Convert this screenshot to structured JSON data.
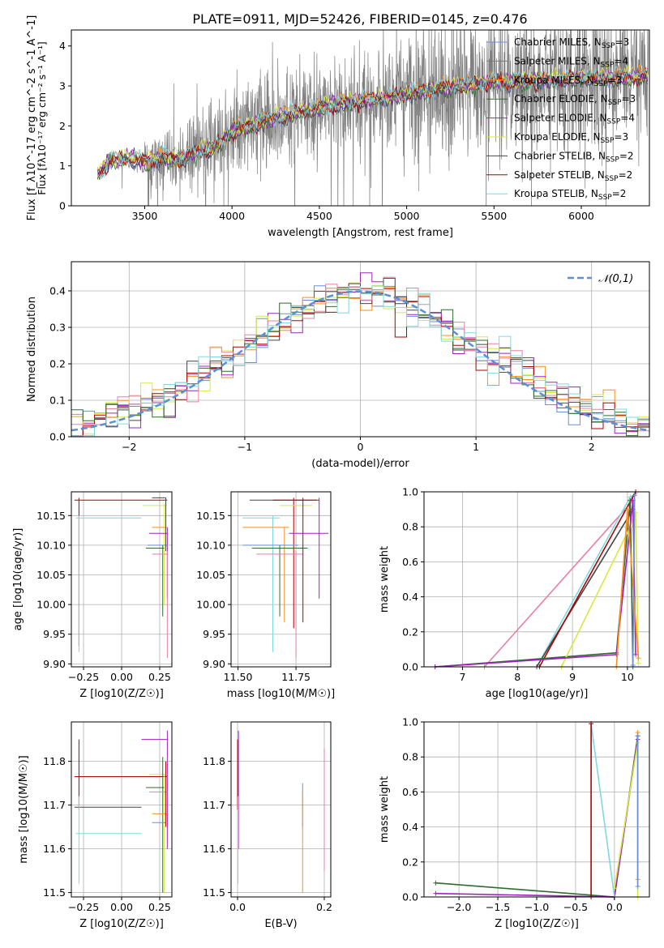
{
  "figure_title": "PLATE=0911, MJD=52426, FIBERID=0145, z=0.476",
  "colors": {
    "Chabrier MILES": "#6a8fd6",
    "Salpeter MILES": "#7a7a7a",
    "Kroupa MILES": "#ff8c1a",
    "Chabrier ELODIE": "#2f6b2f",
    "Salpeter ELODIE": "#a020c0",
    "Kroupa ELODIE": "#d8e840",
    "Chabrier STELIB": "#444444",
    "Salpeter STELIB": "#b00000",
    "Kroupa STELIB": "#7fd8e0",
    "gauss": "#5b8fd6",
    "pink": "#e87fa8"
  },
  "chart_data": [
    {
      "type": "line",
      "title": "",
      "xlabel": "wavelength [Angstrom, rest frame]",
      "ylabel": "Flux [f_λ10^-17 erg cm^-2 s^-1 A^-1]",
      "xlim": [
        3080,
        6390
      ],
      "ylim": [
        0,
        4.4
      ],
      "xticks": [
        3500,
        4000,
        4500,
        5000,
        5500,
        6000
      ],
      "yticks": [
        0,
        1,
        2,
        3,
        4
      ],
      "legend_position": "right",
      "series": [
        {
          "name": "Chabrier MILES, N_SSP=3"
        },
        {
          "name": "Salpeter MILES, N_SSP=4"
        },
        {
          "name": "Kroupa MILES, N_SSP=3"
        },
        {
          "name": "Chabrier ELODIE, N_SSP=3"
        },
        {
          "name": "Salpeter ELODIE, N_SSP=4"
        },
        {
          "name": "Kroupa ELODIE, N_SSP=3"
        },
        {
          "name": "Chabrier STELIB, N_SSP=2"
        },
        {
          "name": "Salpeter STELIB, N_SSP=2"
        },
        {
          "name": "Kroupa STELIB, N_SSP=2"
        }
      ],
      "continuum": {
        "x": [
          3230,
          3300,
          3400,
          3500,
          3600,
          3700,
          3800,
          3900,
          4000,
          4100,
          4200,
          4300,
          4400,
          4500,
          4600,
          4700,
          4800,
          4900,
          5000,
          5100,
          5200,
          5300,
          5400,
          5500,
          5600,
          5700,
          5800,
          5900,
          6000,
          6100,
          6200,
          6300,
          6380
        ],
        "y": [
          0.75,
          1.15,
          1.2,
          1.1,
          1.2,
          1.15,
          1.35,
          1.45,
          1.85,
          2.0,
          2.15,
          2.25,
          2.35,
          2.45,
          2.55,
          2.6,
          2.65,
          2.72,
          2.8,
          2.85,
          2.95,
          3.0,
          3.05,
          3.1,
          3.1,
          3.12,
          3.15,
          3.15,
          3.2,
          3.2,
          3.22,
          3.22,
          3.25
        ]
      }
    },
    {
      "type": "bar",
      "title": "",
      "xlabel": "(data-model)/error",
      "ylabel": "Normed distribution",
      "xlim": [
        -2.5,
        2.5
      ],
      "ylim": [
        0,
        0.48
      ],
      "xticks": [
        -2,
        -1,
        0,
        1,
        2
      ],
      "yticks": [
        0.0,
        0.1,
        0.2,
        0.3,
        0.4
      ],
      "legend": [
        "𝒩(0,1)"
      ],
      "legend_position": "top-right",
      "grid": true
    },
    {
      "type": "scatter",
      "xlabel": "Z [log10(Z/Z☉)]",
      "ylabel": "age  [log10(age/yr)]",
      "xlim": [
        -0.33,
        0.33
      ],
      "ylim": [
        9.895,
        10.19
      ],
      "xticks": [
        -0.25,
        0.0,
        0.25
      ],
      "yticks": [
        9.9,
        9.95,
        10.0,
        10.05,
        10.1,
        10.15
      ],
      "grid": true
    },
    {
      "type": "scatter",
      "xlabel": "mass [log10(M/M☉)]",
      "ylabel": "",
      "xlim": [
        11.47,
        11.9
      ],
      "ylim": [
        9.895,
        10.19
      ],
      "xticks": [
        11.5,
        11.75
      ],
      "yticks": [
        9.9,
        9.95,
        10.0,
        10.05,
        10.1,
        10.15
      ],
      "grid": true
    },
    {
      "type": "line",
      "xlabel": "age  [log10(age/yr)]",
      "ylabel": "mass weight",
      "xlim": [
        6.3,
        10.4
      ],
      "ylim": [
        0,
        1.0
      ],
      "xticks": [
        7,
        8,
        9,
        10
      ],
      "yticks": [
        0.0,
        0.2,
        0.4,
        0.6,
        0.8,
        1.0
      ],
      "grid": true
    },
    {
      "type": "scatter",
      "xlabel": "Z [log10(Z/Z☉)]",
      "ylabel": "mass [log10(M/M☉)]",
      "xlim": [
        -0.33,
        0.33
      ],
      "ylim": [
        11.49,
        11.89
      ],
      "xticks": [
        -0.25,
        0.0,
        0.25
      ],
      "yticks": [
        11.5,
        11.6,
        11.7,
        11.8
      ],
      "grid": true
    },
    {
      "type": "scatter",
      "xlabel": "E(B-V)",
      "ylabel": "",
      "xlim": [
        -0.015,
        0.215
      ],
      "ylim": [
        11.49,
        11.89
      ],
      "xticks": [
        0.0,
        0.2
      ],
      "yticks": [
        11.5,
        11.6,
        11.7,
        11.8
      ],
      "grid": true
    },
    {
      "type": "line",
      "xlabel": "Z [log10(Z/Z☉)]",
      "ylabel": "mass weight",
      "xlim": [
        -2.45,
        0.45
      ],
      "ylim": [
        0,
        1.0
      ],
      "xticks": [
        -2.0,
        -1.5,
        -1.0,
        -0.5,
        0.0
      ],
      "yticks": [
        0.0,
        0.2,
        0.4,
        0.6,
        0.8,
        1.0
      ],
      "grid": true
    }
  ]
}
